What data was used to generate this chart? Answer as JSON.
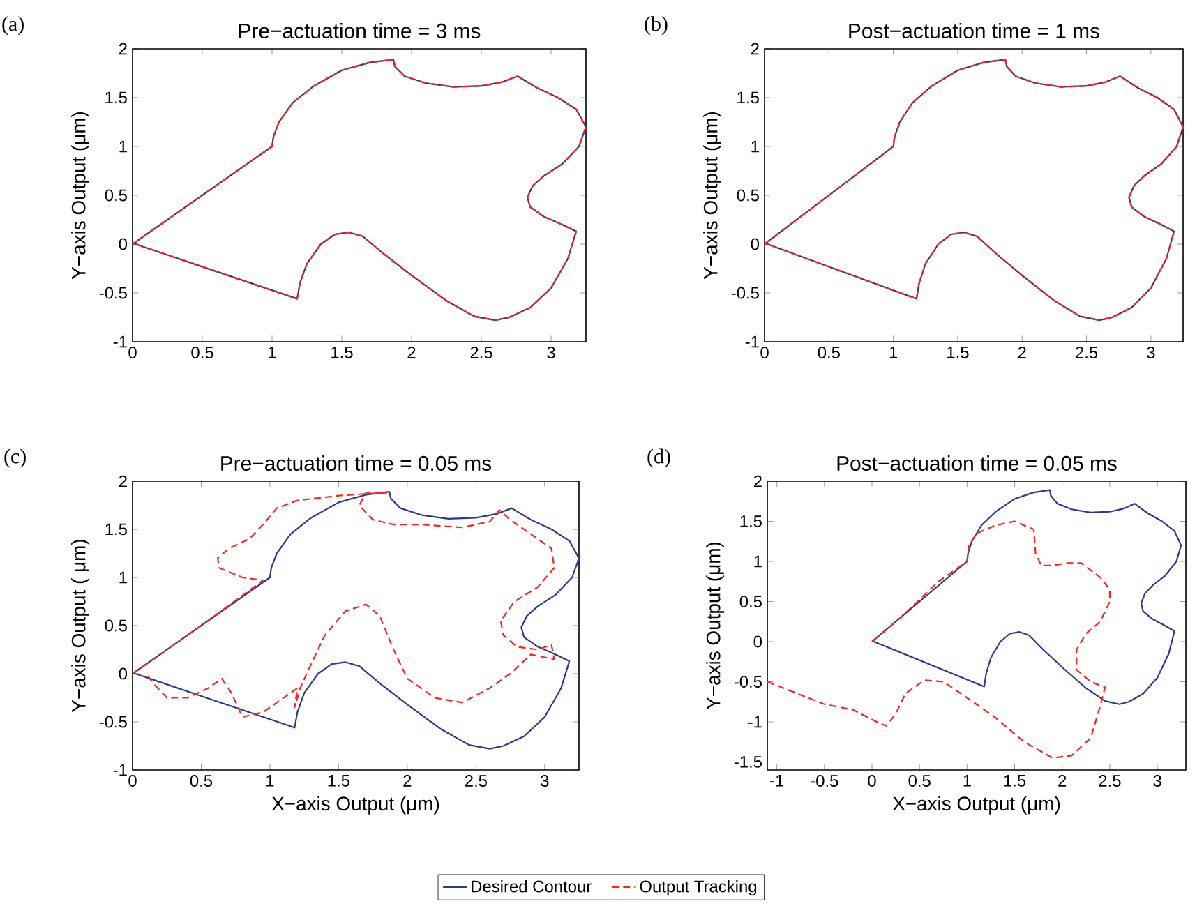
{
  "chart_data": [
    {
      "type": "line",
      "title": "Pre−actuation time = 3 ms",
      "ylabel": "Y−axis Output (μm)",
      "annotations": [
        "(a)"
      ],
      "xlim": [
        0,
        3.25
      ],
      "ylim": [
        -1,
        2
      ],
      "xticks": [
        0,
        0.5,
        1,
        1.5,
        2,
        2.5,
        3
      ],
      "yticks": [
        -1,
        -0.5,
        0,
        0.5,
        1,
        1.5,
        2
      ],
      "series": [
        {
          "color": "#2b3990",
          "line_style": "solid",
          "x": [
            0,
            1,
            1.01,
            1.05,
            1.15,
            1.3,
            1.5,
            1.7,
            1.87,
            1.88,
            1.95,
            2.1,
            2.3,
            2.5,
            2.65,
            2.76,
            2.9,
            3.05,
            3.18,
            3.25,
            3.2,
            3.08,
            2.95,
            2.87,
            2.83,
            2.85,
            2.95,
            3.08,
            3.18,
            3.12,
            3.0,
            2.85,
            2.7,
            2.6,
            2.45,
            2.25,
            2.0,
            1.8,
            1.65,
            1.55,
            1.45,
            1.35,
            1.25,
            1.2,
            1.18,
            0.01
          ],
          "values": [
            0,
            1,
            1.1,
            1.25,
            1.45,
            1.62,
            1.78,
            1.86,
            1.89,
            1.82,
            1.72,
            1.65,
            1.61,
            1.62,
            1.66,
            1.72,
            1.6,
            1.5,
            1.38,
            1.2,
            1.0,
            0.82,
            0.7,
            0.6,
            0.48,
            0.38,
            0.28,
            0.2,
            0.13,
            -0.15,
            -0.45,
            -0.65,
            -0.75,
            -0.78,
            -0.74,
            -0.58,
            -0.32,
            -0.1,
            0.08,
            0.12,
            0.1,
            0.0,
            -0.2,
            -0.4,
            -0.56,
            0.005
          ]
        },
        {
          "color": "#ff2020",
          "line_style": "dashed",
          "x": [
            0,
            1,
            1.01,
            1.05,
            1.15,
            1.3,
            1.5,
            1.7,
            1.87,
            1.88,
            1.95,
            2.1,
            2.3,
            2.5,
            2.65,
            2.76,
            2.9,
            3.05,
            3.18,
            3.25,
            3.2,
            3.08,
            2.95,
            2.87,
            2.83,
            2.85,
            2.95,
            3.08,
            3.18,
            3.12,
            3.0,
            2.85,
            2.7,
            2.6,
            2.45,
            2.25,
            2.0,
            1.8,
            1.65,
            1.55,
            1.45,
            1.35,
            1.25,
            1.2,
            1.18,
            0.01
          ],
          "values": [
            0,
            1,
            1.1,
            1.25,
            1.45,
            1.62,
            1.78,
            1.86,
            1.89,
            1.82,
            1.72,
            1.65,
            1.61,
            1.62,
            1.66,
            1.72,
            1.6,
            1.5,
            1.38,
            1.2,
            1.0,
            0.82,
            0.7,
            0.6,
            0.48,
            0.38,
            0.28,
            0.2,
            0.13,
            -0.15,
            -0.45,
            -0.65,
            -0.75,
            -0.78,
            -0.74,
            -0.58,
            -0.32,
            -0.1,
            0.08,
            0.12,
            0.1,
            0.0,
            -0.2,
            -0.4,
            -0.56,
            0.005
          ]
        }
      ]
    },
    {
      "type": "line",
      "title": "Post−actuation time = 1 ms",
      "ylabel": "Y−axis Output (μm)",
      "annotations": [
        "(b)"
      ],
      "xlim": [
        0,
        3.25
      ],
      "ylim": [
        -1,
        2
      ],
      "xticks": [
        0,
        0.5,
        1,
        1.5,
        2,
        2.5,
        3
      ],
      "yticks": [
        -1,
        -0.5,
        0,
        0.5,
        1,
        1.5,
        2
      ],
      "series": [
        {
          "color": "#2b3990",
          "line_style": "solid",
          "x": [
            0,
            1,
            1.01,
            1.05,
            1.15,
            1.3,
            1.5,
            1.7,
            1.87,
            1.88,
            1.95,
            2.1,
            2.3,
            2.5,
            2.65,
            2.76,
            2.9,
            3.05,
            3.18,
            3.25,
            3.2,
            3.08,
            2.95,
            2.87,
            2.83,
            2.85,
            2.95,
            3.08,
            3.18,
            3.12,
            3.0,
            2.85,
            2.7,
            2.6,
            2.45,
            2.25,
            2.0,
            1.8,
            1.65,
            1.55,
            1.45,
            1.35,
            1.25,
            1.2,
            1.18,
            0.01
          ],
          "values": [
            0,
            1,
            1.1,
            1.25,
            1.45,
            1.62,
            1.78,
            1.86,
            1.89,
            1.82,
            1.72,
            1.65,
            1.61,
            1.62,
            1.66,
            1.72,
            1.6,
            1.5,
            1.38,
            1.2,
            1.0,
            0.82,
            0.7,
            0.6,
            0.48,
            0.38,
            0.28,
            0.2,
            0.13,
            -0.15,
            -0.45,
            -0.65,
            -0.75,
            -0.78,
            -0.74,
            -0.58,
            -0.32,
            -0.1,
            0.08,
            0.12,
            0.1,
            0.0,
            -0.2,
            -0.4,
            -0.56,
            0.005
          ]
        },
        {
          "color": "#ff2020",
          "line_style": "dashed",
          "x": [
            0,
            1,
            1.01,
            1.05,
            1.15,
            1.3,
            1.5,
            1.7,
            1.87,
            1.88,
            1.95,
            2.1,
            2.3,
            2.5,
            2.65,
            2.76,
            2.9,
            3.05,
            3.18,
            3.25,
            3.2,
            3.08,
            2.95,
            2.87,
            2.83,
            2.85,
            2.95,
            3.08,
            3.18,
            3.12,
            3.0,
            2.85,
            2.7,
            2.6,
            2.45,
            2.25,
            2.0,
            1.8,
            1.65,
            1.55,
            1.45,
            1.35,
            1.25,
            1.2,
            1.18,
            0.01
          ],
          "values": [
            0,
            1,
            1.1,
            1.25,
            1.45,
            1.62,
            1.78,
            1.86,
            1.89,
            1.82,
            1.72,
            1.65,
            1.61,
            1.62,
            1.66,
            1.72,
            1.6,
            1.5,
            1.38,
            1.2,
            1.0,
            0.82,
            0.7,
            0.6,
            0.48,
            0.38,
            0.28,
            0.2,
            0.13,
            -0.15,
            -0.45,
            -0.65,
            -0.75,
            -0.78,
            -0.74,
            -0.58,
            -0.32,
            -0.1,
            0.08,
            0.12,
            0.1,
            0.0,
            -0.2,
            -0.4,
            -0.56,
            0.005
          ]
        }
      ]
    },
    {
      "type": "line",
      "title": "Pre−actuation time = 0.05 ms",
      "xlabel": "X−axis Output (μm)",
      "ylabel": "Y−axis Output ( μm)",
      "annotations": [
        "(c)"
      ],
      "xlim": [
        0,
        3.25
      ],
      "ylim": [
        -1,
        2
      ],
      "xticks": [
        0,
        0.5,
        1,
        1.5,
        2,
        2.5,
        3
      ],
      "yticks": [
        -1,
        -0.5,
        0,
        0.5,
        1,
        1.5,
        2
      ],
      "series": [
        {
          "color": "#2b3990",
          "line_style": "solid",
          "x": [
            0,
            1,
            1.01,
            1.05,
            1.15,
            1.3,
            1.5,
            1.7,
            1.87,
            1.88,
            1.95,
            2.1,
            2.3,
            2.5,
            2.65,
            2.76,
            2.9,
            3.05,
            3.18,
            3.25,
            3.2,
            3.08,
            2.95,
            2.87,
            2.83,
            2.85,
            2.95,
            3.08,
            3.18,
            3.12,
            3.0,
            2.85,
            2.7,
            2.6,
            2.45,
            2.25,
            2.0,
            1.8,
            1.65,
            1.55,
            1.45,
            1.35,
            1.25,
            1.2,
            1.18,
            0.01
          ],
          "values": [
            0,
            1,
            1.1,
            1.25,
            1.45,
            1.62,
            1.78,
            1.86,
            1.89,
            1.82,
            1.72,
            1.65,
            1.61,
            1.62,
            1.66,
            1.72,
            1.6,
            1.5,
            1.38,
            1.2,
            1.0,
            0.82,
            0.7,
            0.6,
            0.48,
            0.38,
            0.28,
            0.2,
            0.13,
            -0.15,
            -0.45,
            -0.65,
            -0.75,
            -0.78,
            -0.74,
            -0.58,
            -0.32,
            -0.1,
            0.08,
            0.12,
            0.1,
            0.0,
            -0.2,
            -0.4,
            -0.56,
            0.005
          ]
        },
        {
          "color": "#ff2020",
          "line_style": "dashed",
          "x": [
            0,
            0.5,
            0.95,
            0.8,
            0.63,
            0.62,
            0.7,
            0.85,
            0.95,
            1.05,
            1.2,
            1.5,
            1.7,
            1.85,
            1.7,
            1.65,
            1.75,
            1.9,
            2.1,
            2.4,
            2.6,
            2.67,
            2.75,
            2.9,
            3.05,
            3.07,
            2.95,
            2.78,
            2.68,
            2.7,
            2.8,
            2.95,
            3.05,
            3.07,
            2.9,
            2.75,
            2.6,
            2.4,
            2.2,
            2.0,
            1.9,
            1.8,
            1.7,
            1.55,
            1.4,
            1.3,
            1.22,
            1.18,
            1.2,
            1.1,
            0.95,
            0.8,
            0.72,
            0.65,
            0.55,
            0.4,
            0.25,
            0.15,
            0.1
          ],
          "values": [
            0,
            0.5,
            0.97,
            1.0,
            1.1,
            1.2,
            1.3,
            1.4,
            1.55,
            1.72,
            1.8,
            1.85,
            1.87,
            1.88,
            1.88,
            1.75,
            1.6,
            1.55,
            1.55,
            1.52,
            1.58,
            1.7,
            1.6,
            1.45,
            1.3,
            1.1,
            0.9,
            0.75,
            0.55,
            0.4,
            0.28,
            0.25,
            0.3,
            0.15,
            0.2,
            0.0,
            -0.15,
            -0.3,
            -0.25,
            -0.05,
            0.25,
            0.6,
            0.72,
            0.65,
            0.4,
            0.1,
            -0.15,
            -0.35,
            -0.15,
            -0.25,
            -0.4,
            -0.45,
            -0.2,
            -0.05,
            -0.15,
            -0.25,
            -0.25,
            -0.1,
            0
          ]
        }
      ]
    },
    {
      "type": "line",
      "title": "Post−actuation time = 0.05 ms",
      "xlabel": "X−axis Output (μm)",
      "ylabel": "Y−axis Output (μm)",
      "annotations": [
        "(d)"
      ],
      "xlim": [
        -1.1,
        3.3
      ],
      "ylim": [
        -1.6,
        2
      ],
      "xticks": [
        -1,
        -0.5,
        0,
        0.5,
        1,
        1.5,
        2,
        2.5,
        3
      ],
      "yticks": [
        -1.5,
        -1,
        -0.5,
        0,
        0.5,
        1,
        1.5,
        2
      ],
      "legend": "bottom",
      "series": [
        {
          "name": "Desired Contour",
          "color": "#2b3990",
          "line_style": "solid",
          "x": [
            0,
            1,
            1.01,
            1.05,
            1.15,
            1.3,
            1.5,
            1.7,
            1.87,
            1.88,
            1.95,
            2.1,
            2.3,
            2.5,
            2.65,
            2.76,
            2.9,
            3.05,
            3.18,
            3.25,
            3.2,
            3.08,
            2.95,
            2.87,
            2.83,
            2.85,
            2.95,
            3.08,
            3.18,
            3.12,
            3.0,
            2.85,
            2.7,
            2.6,
            2.45,
            2.25,
            2.0,
            1.8,
            1.65,
            1.55,
            1.45,
            1.35,
            1.25,
            1.2,
            1.18,
            0.01
          ],
          "values": [
            0,
            1,
            1.1,
            1.25,
            1.45,
            1.62,
            1.78,
            1.86,
            1.89,
            1.82,
            1.72,
            1.65,
            1.61,
            1.62,
            1.66,
            1.72,
            1.6,
            1.5,
            1.38,
            1.2,
            1.0,
            0.82,
            0.7,
            0.6,
            0.48,
            0.38,
            0.28,
            0.2,
            0.13,
            -0.15,
            -0.45,
            -0.65,
            -0.75,
            -0.78,
            -0.74,
            -0.58,
            -0.32,
            -0.1,
            0.08,
            0.12,
            0.1,
            0.0,
            -0.2,
            -0.4,
            -0.56,
            0.005
          ]
        },
        {
          "name": "Output Tracking",
          "color": "#ff2020",
          "line_style": "dashed",
          "x": [
            -1.1,
            -0.5,
            -0.2,
            0.05,
            0.15,
            0.25,
            0.35,
            0.55,
            0.75,
            1.0,
            1.3,
            1.6,
            1.9,
            2.1,
            2.3,
            2.4,
            2.45,
            2.3,
            2.15,
            2.15,
            2.25,
            2.4,
            2.5,
            2.5,
            2.4,
            2.2,
            2.05,
            1.9,
            1.78,
            1.72,
            1.7,
            1.5,
            1.3,
            1.1,
            1.02,
            1.0,
            0.7,
            0.3,
            0
          ],
          "values": [
            -0.5,
            -0.78,
            -0.85,
            -1.0,
            -1.05,
            -0.9,
            -0.65,
            -0.48,
            -0.5,
            -0.7,
            -0.95,
            -1.25,
            -1.45,
            -1.42,
            -1.2,
            -0.8,
            -0.57,
            -0.5,
            -0.35,
            -0.1,
            0.1,
            0.25,
            0.5,
            0.65,
            0.8,
            0.98,
            0.98,
            0.95,
            0.95,
            1.1,
            1.4,
            1.5,
            1.45,
            1.35,
            1.2,
            1.0,
            0.75,
            0.3,
            0
          ]
        }
      ]
    }
  ]
}
